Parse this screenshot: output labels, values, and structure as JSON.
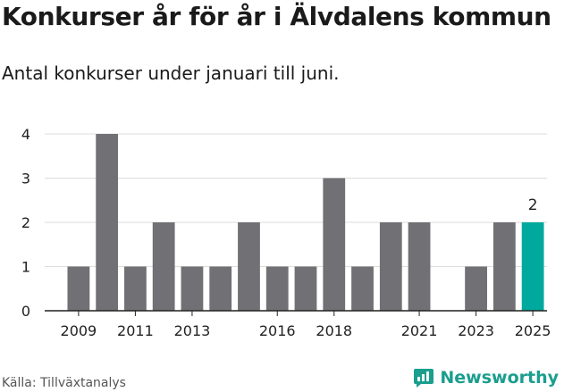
{
  "title": "Konkurser år för år i Älvdalens kommun",
  "subtitle": "Antal konkurser under januari till juni.",
  "source": "Källa: Tillväxtanalys",
  "brand": "Newsworthy",
  "colors": {
    "bar": "#717074",
    "highlight": "#00a99d",
    "grid": "#dddddd",
    "axis": "#222222"
  },
  "chart_data": {
    "type": "bar",
    "title": "Konkurser år för år i Älvdalens kommun",
    "subtitle": "Antal konkurser under januari till juni.",
    "categories": [
      "2009",
      "2010",
      "2011",
      "2012",
      "2013",
      "2014",
      "2015",
      "2016",
      "2017",
      "2018",
      "2019",
      "2020",
      "2021",
      "2022",
      "2023",
      "2024",
      "2025"
    ],
    "values": [
      1,
      4,
      1,
      2,
      1,
      1,
      2,
      1,
      1,
      3,
      1,
      2,
      2,
      0,
      1,
      2,
      2
    ],
    "xticks": [
      "2009",
      "2011",
      "2013",
      "2016",
      "2018",
      "2021",
      "2023",
      "2025"
    ],
    "yticks": [
      0,
      1,
      2,
      3,
      4
    ],
    "ylim": [
      0,
      4
    ],
    "highlight": {
      "category": "2025",
      "label": "2"
    },
    "grid": true,
    "xlabel": "",
    "ylabel": ""
  }
}
